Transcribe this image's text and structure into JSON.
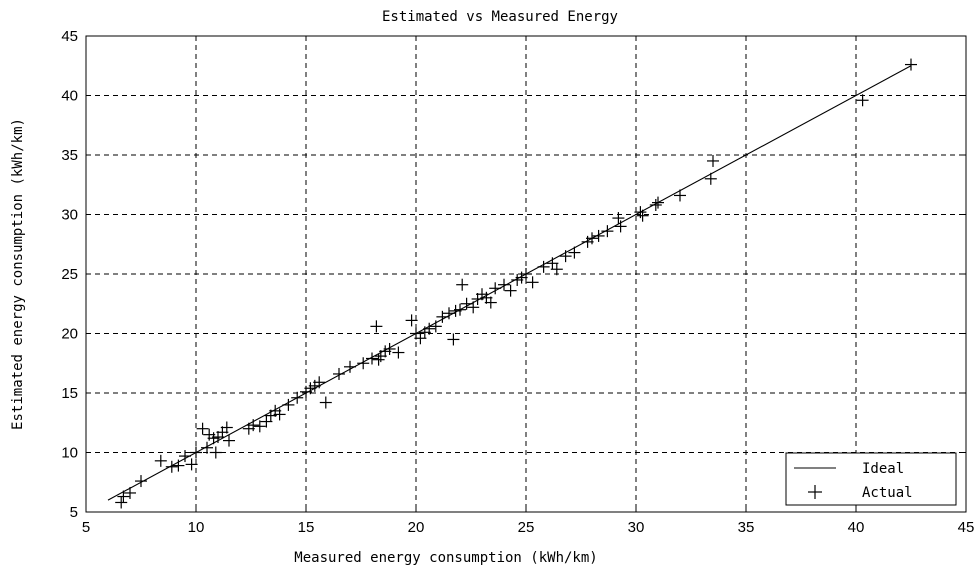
{
  "chart_data": {
    "type": "scatter",
    "title": "Estimated vs Measured Energy",
    "xlabel": "Measured energy consumption (kWh/km)",
    "ylabel": "Estimated energy consumption (kWh/km)",
    "xlim": [
      5,
      45
    ],
    "ylim": [
      5,
      45
    ],
    "xticks": [
      5,
      10,
      15,
      20,
      25,
      30,
      35,
      40,
      45
    ],
    "yticks": [
      5,
      10,
      15,
      20,
      25,
      30,
      35,
      40,
      45
    ],
    "grid": true,
    "legend_position": "bottom-right",
    "series": [
      {
        "name": "Ideal",
        "style": "line",
        "x": [
          6.0,
          42.5
        ],
        "y": [
          6.0,
          42.5
        ]
      },
      {
        "name": "Actual",
        "style": "plus-marker",
        "x": [
          6.6,
          6.7,
          7.0,
          7.5,
          8.4,
          8.9,
          9.2,
          9.5,
          9.8,
          10.0,
          10.3,
          10.5,
          10.6,
          10.8,
          10.9,
          11.0,
          11.2,
          11.4,
          11.5,
          12.4,
          12.6,
          12.9,
          13.2,
          13.4,
          13.6,
          13.8,
          14.2,
          14.6,
          15.0,
          15.2,
          15.4,
          15.6,
          15.9,
          16.5,
          17.0,
          17.6,
          18.0,
          18.2,
          18.3,
          18.4,
          18.6,
          18.8,
          19.2,
          19.8,
          20.0,
          20.2,
          20.4,
          20.6,
          20.9,
          21.2,
          21.5,
          21.7,
          21.8,
          22.0,
          22.1,
          22.3,
          22.6,
          22.8,
          23.0,
          23.2,
          23.4,
          23.6,
          24.0,
          24.3,
          24.6,
          24.8,
          25.0,
          25.3,
          25.8,
          26.2,
          26.4,
          26.8,
          27.2,
          27.8,
          28.0,
          28.3,
          28.7,
          29.2,
          29.3,
          30.2,
          30.3,
          30.9,
          31.0,
          32.0,
          33.4,
          33.5,
          40.3,
          42.5
        ],
        "y": [
          5.8,
          6.3,
          6.6,
          7.6,
          9.3,
          8.8,
          8.9,
          9.7,
          9.0,
          10.0,
          12.0,
          10.4,
          11.5,
          11.2,
          10.0,
          11.3,
          11.7,
          12.1,
          11.0,
          12.0,
          12.3,
          12.2,
          12.6,
          13.1,
          13.5,
          13.2,
          14.0,
          14.6,
          15.1,
          15.4,
          15.6,
          15.9,
          14.2,
          16.6,
          17.2,
          17.5,
          17.9,
          20.6,
          17.8,
          18.1,
          18.5,
          18.7,
          18.4,
          21.1,
          20.0,
          19.6,
          20.1,
          20.4,
          20.6,
          21.4,
          21.7,
          19.5,
          21.9,
          22.0,
          24.1,
          22.5,
          22.2,
          22.9,
          23.3,
          23.0,
          22.6,
          23.8,
          24.1,
          23.6,
          24.5,
          24.7,
          25.0,
          24.3,
          25.6,
          25.9,
          25.4,
          26.5,
          26.8,
          27.7,
          28.0,
          28.2,
          28.6,
          29.7,
          29.0,
          30.2,
          29.9,
          30.8,
          31.0,
          31.6,
          33.0,
          34.5,
          39.6,
          42.6
        ]
      }
    ]
  }
}
